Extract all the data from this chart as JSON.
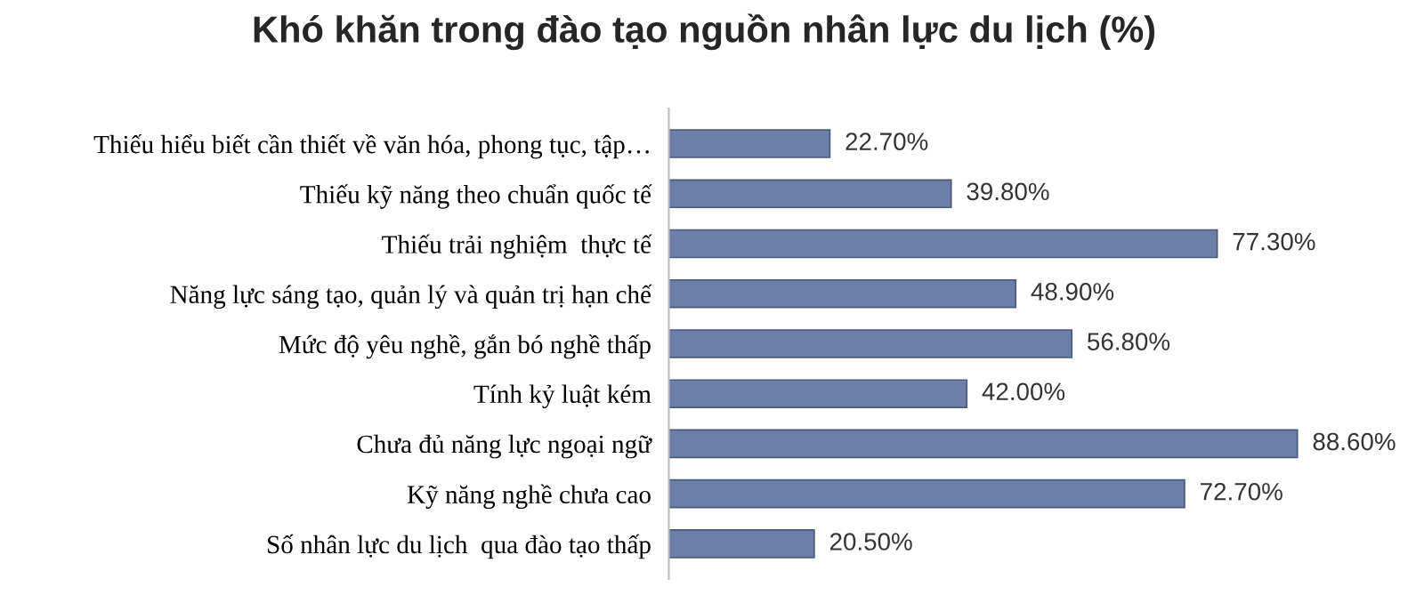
{
  "chart_data": {
    "type": "bar",
    "orientation": "horizontal",
    "title": "Khó khăn trong đào tạo nguồn nhân lực du lịch (%)",
    "categories": [
      "Thiếu hiểu biết cần thiết về văn hóa, phong tục, tập…",
      "Thiếu kỹ năng theo chuẩn quốc tế",
      "Thiếu trải nghiệm  thực tế",
      "Năng lực sáng tạo, quản lý và quản trị hạn chế",
      "Mức độ yêu nghề, gắn bó nghề thấp",
      "Tính kỷ luật kém",
      "Chưa đủ năng lực ngoại ngữ",
      "Kỹ năng nghề chưa cao",
      "Số nhân lực du lịch  qua đào tạo thấp"
    ],
    "values": [
      22.7,
      39.8,
      77.3,
      48.9,
      56.8,
      42.0,
      88.6,
      72.7,
      20.5
    ],
    "value_labels": [
      "22.70%",
      "39.80%",
      "77.30%",
      "48.90%",
      "56.80%",
      "42.00%",
      "88.60%",
      "72.70%",
      "20.50%"
    ],
    "color": "#6b7fa8",
    "tick_labels": "y"
  }
}
